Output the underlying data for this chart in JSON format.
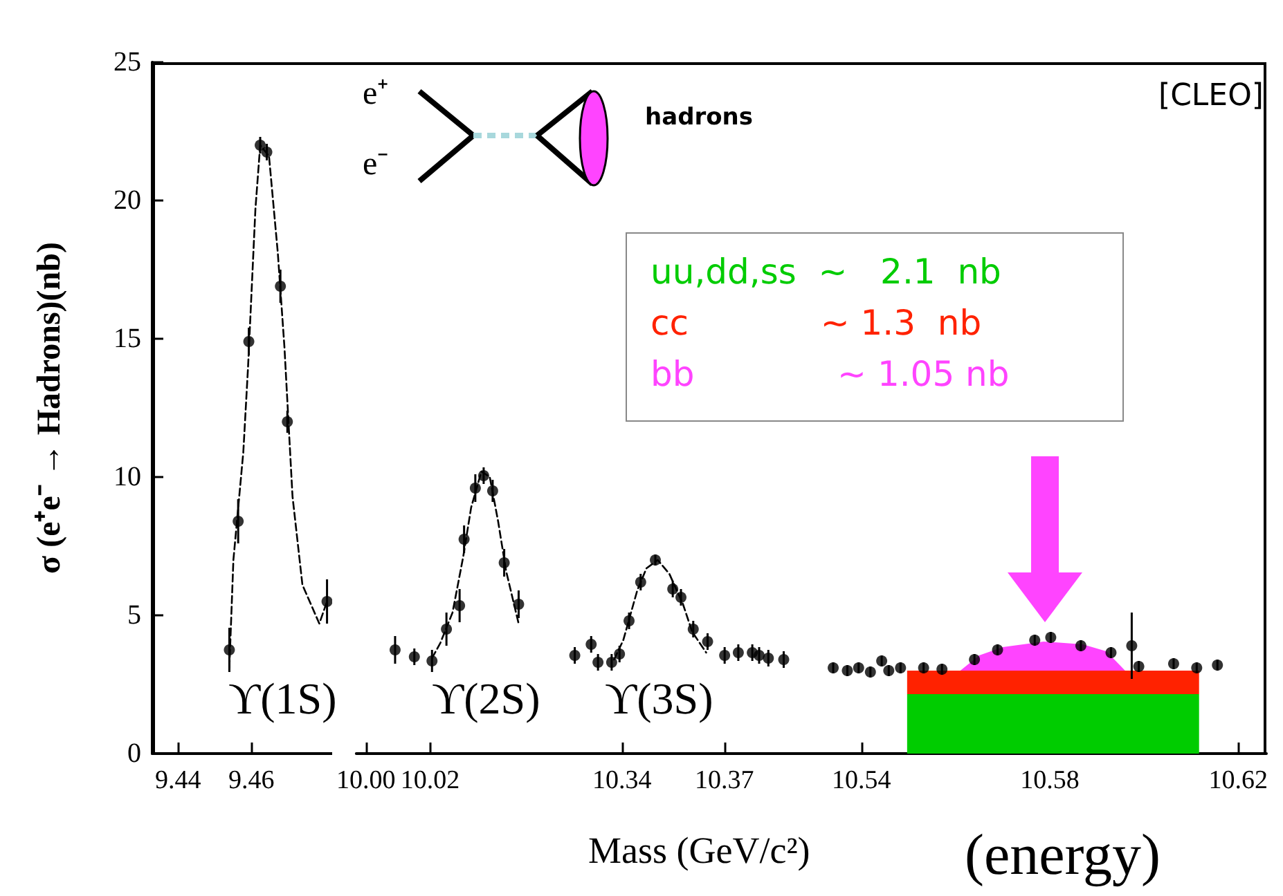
{
  "chart_data": [
    {
      "type": "scatter",
      "ylabel": "σ (e⁺e⁻ → Hadrons)(nb)",
      "xlim": [
        9.433,
        9.482
      ],
      "xticks": [
        9.44,
        9.46
      ],
      "ylim": [
        0,
        25
      ],
      "yticks": [
        0,
        5,
        10,
        15,
        20,
        25
      ],
      "annotations": [
        "ϒ(1S)",
        "e⁺",
        "e⁻",
        "hadrons"
      ],
      "series": [
        {
          "color": "#000000",
          "marker": "circle",
          "x": [
            9.454,
            9.4564,
            9.4593,
            9.4624,
            9.4642,
            9.4679,
            9.4698,
            9.4806
          ],
          "values": [
            3.75,
            8.4,
            14.9,
            22.0,
            21.75,
            16.9,
            12.0,
            5.5
          ],
          "errors": [
            0.8,
            0.8,
            0.5,
            0.3,
            0.3,
            0.6,
            0.4,
            0.8
          ]
        },
        {
          "type": "line",
          "color": "#000000",
          "line_style": "dashed",
          "marker": "none",
          "x": [
            9.454,
            9.4551,
            9.4578,
            9.4591,
            9.4611,
            9.4624,
            9.4648,
            9.4672,
            9.469,
            9.4712,
            9.4739,
            9.4785,
            9.4806
          ],
          "values": [
            3.1,
            7.0,
            10.9,
            14.0,
            19.7,
            22.0,
            21.6,
            18.1,
            14.7,
            9.3,
            6.1,
            4.7,
            5.5
          ]
        }
      ]
    },
    {
      "type": "scatter",
      "xlim": [
        9.997,
        10.0585
      ],
      "xticks": [
        {
          "value": 10,
          "label": "10.00"
        },
        10.02
      ],
      "ylim": [
        0,
        25
      ],
      "tick_labels": "x",
      "annotations": [
        "ϒ(2S)"
      ],
      "series": [
        {
          "color": "#000000",
          "marker": "circle",
          "x": [
            10.0091,
            10.0151,
            10.0206,
            10.0251,
            10.0292,
            10.0306,
            10.0341,
            10.0367,
            10.0395,
            10.0431,
            10.0476
          ],
          "values": [
            3.75,
            3.5,
            3.35,
            4.5,
            5.35,
            7.75,
            9.6,
            10.05,
            9.5,
            6.9,
            5.4
          ],
          "errors": [
            0.5,
            0.3,
            0.4,
            0.6,
            0.6,
            0.5,
            0.5,
            0.3,
            0.4,
            0.5,
            0.5
          ]
        },
        {
          "type": "line",
          "color": "#000000",
          "line_style": "dashed",
          "marker": "none",
          "x": [
            10.0206,
            10.0232,
            10.027,
            10.0303,
            10.0328,
            10.036,
            10.0386,
            10.0412,
            10.0437,
            10.0476
          ],
          "values": [
            3.45,
            4.0,
            5.1,
            7.1,
            8.9,
            10.2,
            10.0,
            8.4,
            6.6,
            4.7
          ]
        }
      ]
    },
    {
      "type": "scatter",
      "xlabel": "Mass (GeV/c²)",
      "xlim": [
        10.32,
        10.395
      ],
      "xticks": [
        10.34,
        10.37
      ],
      "ylim": [
        0,
        25
      ],
      "tick_labels": "x",
      "annotations": [
        "ϒ(3S)"
      ],
      "series": [
        {
          "color": "#000000",
          "marker": "circle",
          "x": [
            10.3262,
            10.331,
            10.333,
            10.337,
            10.3393,
            10.3421,
            10.3455,
            10.3498,
            10.3549,
            10.3573,
            10.3609,
            10.3651,
            10.3701,
            10.3741,
            10.3782,
            10.3802,
            10.3829,
            10.3874
          ],
          "values": [
            3.55,
            3.95,
            3.3,
            3.3,
            3.6,
            4.8,
            6.2,
            7.0,
            5.95,
            5.65,
            4.5,
            4.05,
            3.55,
            3.65,
            3.65,
            3.55,
            3.45,
            3.4
          ],
          "errors": [
            0.3,
            0.3,
            0.3,
            0.3,
            0.3,
            0.3,
            0.3,
            0.2,
            0.3,
            0.3,
            0.3,
            0.3,
            0.3,
            0.3,
            0.3,
            0.3,
            0.3,
            0.3
          ]
        },
        {
          "type": "line",
          "color": "#000000",
          "line_style": "dashed",
          "marker": "none",
          "x": [
            10.3377,
            10.3404,
            10.3445,
            10.3472,
            10.3505,
            10.3539,
            10.3579,
            10.3606,
            10.3647
          ],
          "values": [
            3.4,
            4.1,
            5.9,
            6.7,
            7.0,
            6.5,
            5.4,
            4.4,
            3.65
          ]
        }
      ]
    },
    {
      "type": "scatter",
      "stacked": true,
      "xlim": [
        10.529,
        10.626
      ],
      "xticks": [
        10.54,
        10.58,
        10.62
      ],
      "ylim": [
        0,
        25
      ],
      "tick_labels": "x",
      "annotations": [
        "[CLEO]",
        "uu,dd,ss  ~   2.1  nb",
        "cc            ~ 1.3  nb",
        "bb             ~ 1.05 nb",
        "(energy)"
      ],
      "series": [
        {
          "type": "area",
          "color": "#00cc00",
          "x": [
            10.5497,
            10.561,
            10.565,
            10.57,
            10.5787,
            10.587,
            10.592,
            10.596,
            10.6117
          ],
          "values": [
            2.15,
            2.15,
            2.15,
            2.15,
            2.15,
            2.15,
            2.15,
            2.15,
            2.15
          ]
        },
        {
          "type": "area",
          "color": "#ff2200",
          "x": [
            10.5497,
            10.561,
            10.565,
            10.57,
            10.5787,
            10.587,
            10.592,
            10.596,
            10.6117
          ],
          "values": [
            0.85,
            0.85,
            0.85,
            0.85,
            0.85,
            0.85,
            0.85,
            0.85,
            0.85
          ]
        },
        {
          "type": "area",
          "color": "#ff44ff",
          "x": [
            10.5497,
            10.561,
            10.565,
            10.57,
            10.5787,
            10.587,
            10.592,
            10.596,
            10.6117
          ],
          "values": [
            0,
            0,
            0.55,
            0.85,
            1.05,
            0.95,
            0.7,
            0,
            0
          ]
        },
        {
          "color": "#000000",
          "marker": "circle",
          "x": [
            10.534,
            10.537,
            10.5394,
            10.5419,
            10.5443,
            10.5458,
            10.5483,
            10.5532,
            10.5571,
            10.564,
            10.5689,
            10.5768,
            10.5802,
            10.5866,
            10.593,
            10.5974,
            10.5989,
            10.6063,
            10.6112,
            10.6156
          ],
          "values": [
            3.1,
            3.0,
            3.1,
            2.95,
            3.35,
            3.0,
            3.1,
            3.1,
            3.05,
            3.4,
            3.75,
            4.1,
            4.2,
            3.9,
            3.65,
            3.9,
            3.15,
            3.25,
            3.1,
            3.2
          ],
          "errors": [
            0.2,
            0.2,
            0.2,
            0.2,
            0.2,
            0.2,
            0.2,
            0.2,
            0.2,
            0.2,
            0.2,
            0.2,
            0.2,
            0.2,
            0.2,
            1.2,
            0.2,
            0.2,
            0.2,
            0.2
          ]
        }
      ]
    }
  ]
}
